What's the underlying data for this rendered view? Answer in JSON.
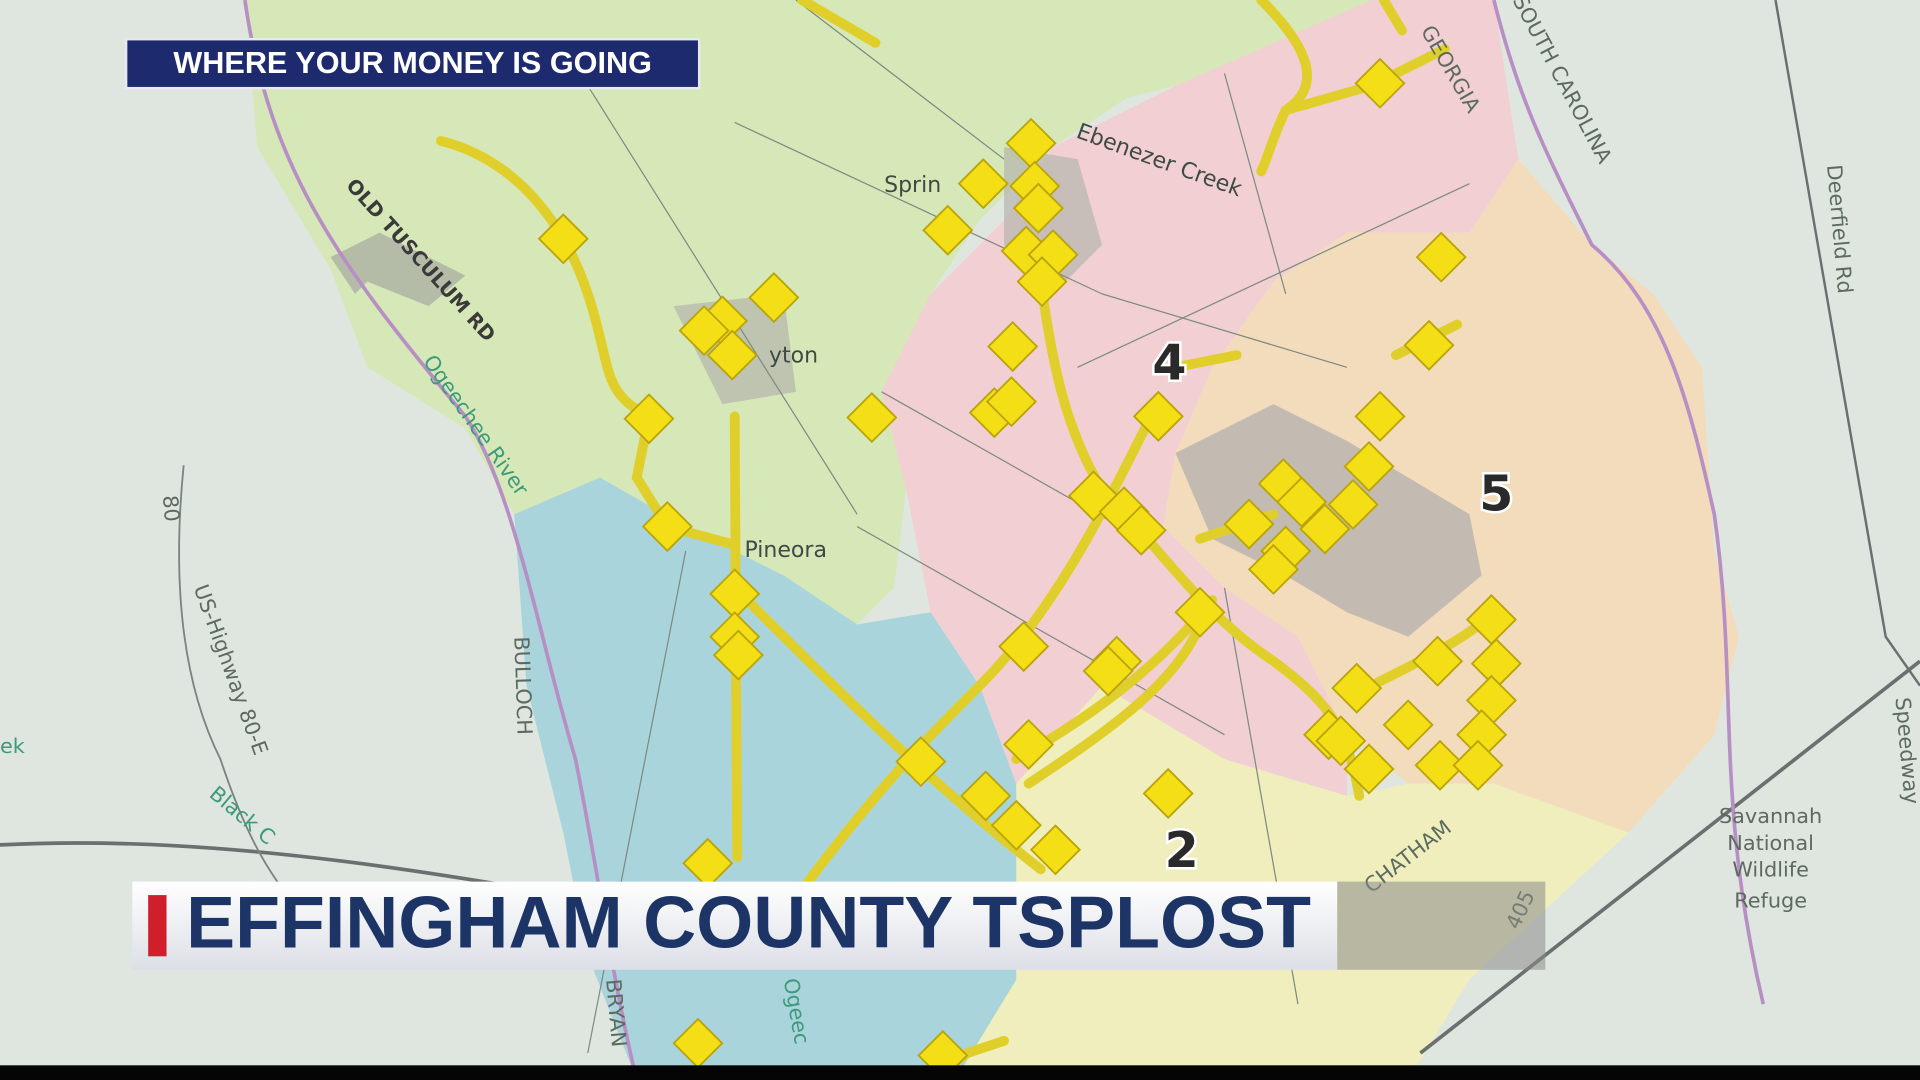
{
  "banner": {
    "tag": "WHERE YOUR MONEY IS GOING",
    "headline": "EFFINGHAM COUNTY TSPLOST"
  },
  "map": {
    "districts": [
      "4",
      "5",
      "2"
    ],
    "places": [
      "Sprin",
      "yton",
      "Pineora",
      "Savannah",
      "National",
      "Wildlife",
      "Refuge"
    ],
    "roads": [
      "OLD TUSCULUM RD",
      "US-Highway 80-E",
      "80",
      "Deerfield Rd",
      "Speedway",
      "405"
    ],
    "water": [
      "Ogeechee River",
      "Ebenezer Creek",
      "Black C",
      "ek",
      "Ogeec"
    ],
    "regions": [
      "GEORGIA",
      "SOUTH CAROLINA",
      "BULLOCH",
      "CHATHAM",
      "BRYAN"
    ]
  }
}
